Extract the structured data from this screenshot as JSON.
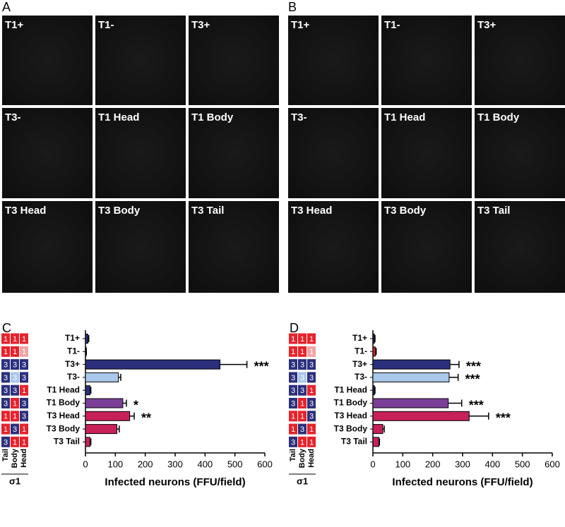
{
  "image_panels": [
    {
      "label": "A",
      "images": [
        "T1+",
        "T1-",
        "T3+",
        "T3-",
        "T1 Head",
        "T1 Body",
        "T3 Head",
        "T3 Body",
        "T3 Tail"
      ]
    },
    {
      "label": "B",
      "images": [
        "T1+",
        "T1-",
        "T3+",
        "T3-",
        "T1 Head",
        "T1 Body",
        "T3 Head",
        "T3 Body",
        "T3 Tail"
      ]
    }
  ],
  "schematic": {
    "columns": [
      "Tail",
      "Body",
      "Head"
    ],
    "label": "σ1",
    "rows": [
      [
        {
          "text": "1",
          "color": "#e8222b"
        },
        {
          "text": "1",
          "color": "#e8222b"
        },
        {
          "text": "1",
          "color": "#e8222b"
        }
      ],
      [
        {
          "text": "1",
          "color": "#e8222b"
        },
        {
          "text": "1",
          "color": "#e8222b"
        },
        {
          "text": "1",
          "color": "#f2a3a3"
        }
      ],
      [
        {
          "text": "3",
          "color": "#2b2f7c"
        },
        {
          "text": "3",
          "color": "#2b2f7c"
        },
        {
          "text": "3",
          "color": "#2b2f7c"
        }
      ],
      [
        {
          "text": "3",
          "color": "#2b2f7c"
        },
        {
          "text": "3",
          "color": "#a9c8ea"
        },
        {
          "text": "3",
          "color": "#2b2f7c"
        }
      ],
      [
        {
          "text": "3",
          "color": "#2b2f7c"
        },
        {
          "text": "3",
          "color": "#2b2f7c"
        },
        {
          "text": "1",
          "color": "#e8222b"
        }
      ],
      [
        {
          "text": "3",
          "color": "#2b2f7c"
        },
        {
          "text": "1",
          "color": "#e8222b"
        },
        {
          "text": "3",
          "color": "#2b2f7c"
        }
      ],
      [
        {
          "text": "1",
          "color": "#e8222b"
        },
        {
          "text": "1",
          "color": "#e8222b"
        },
        {
          "text": "3",
          "color": "#2b2f7c"
        }
      ],
      [
        {
          "text": "1",
          "color": "#e8222b"
        },
        {
          "text": "3",
          "color": "#2b2f7c"
        },
        {
          "text": "1",
          "color": "#e8222b"
        }
      ],
      [
        {
          "text": "3",
          "color": "#2b2f7c"
        },
        {
          "text": "1",
          "color": "#e8222b"
        },
        {
          "text": "1",
          "color": "#e8222b"
        }
      ]
    ]
  },
  "chart_data": [
    {
      "type": "barh",
      "label": "C",
      "xlabel": "Infected neurons (FFU/field)",
      "categories": [
        "T1+",
        "T1-",
        "T3+",
        "T3-",
        "T1 Head",
        "T1 Body",
        "T3 Head",
        "T3 Body",
        "T3 Tail"
      ],
      "values": [
        8,
        2,
        450,
        110,
        15,
        125,
        148,
        105,
        15
      ],
      "errors": [
        3,
        1,
        90,
        8,
        3,
        12,
        15,
        8,
        3
      ],
      "annotations": [
        null,
        null,
        "***",
        null,
        null,
        "*",
        "**",
        null,
        null
      ],
      "colors": [
        "#2b2f7c",
        "#e8222b",
        "#2b2f7c",
        "#a9c8ea",
        "#2b2f7c",
        "#7b3f98",
        "#c8215a",
        "#c8215a",
        "#c8215a"
      ],
      "xlim": [
        0,
        600
      ],
      "xticks": [
        0,
        100,
        200,
        300,
        400,
        500,
        600
      ]
    },
    {
      "type": "barh",
      "label": "D",
      "xlabel": "Infected neurons (FFU/field)",
      "categories": [
        "T1+",
        "T1-",
        "T3+",
        "T3-",
        "T1 Head",
        "T1 Body",
        "T3 Head",
        "T3 Body",
        "T3 Tail"
      ],
      "values": [
        5,
        8,
        258,
        255,
        5,
        252,
        322,
        33,
        20
      ],
      "errors": [
        2,
        3,
        30,
        30,
        2,
        45,
        65,
        5,
        2
      ],
      "annotations": [
        null,
        null,
        "***",
        "***",
        null,
        "***",
        "***",
        null,
        null
      ],
      "colors": [
        "#2b2f7c",
        "#e8222b",
        "#2b2f7c",
        "#a9c8ea",
        "#2b2f7c",
        "#7b3f98",
        "#c8215a",
        "#c8215a",
        "#c8215a"
      ],
      "xlim": [
        0,
        600
      ],
      "xticks": [
        0,
        100,
        200,
        300,
        400,
        500,
        600
      ]
    }
  ]
}
